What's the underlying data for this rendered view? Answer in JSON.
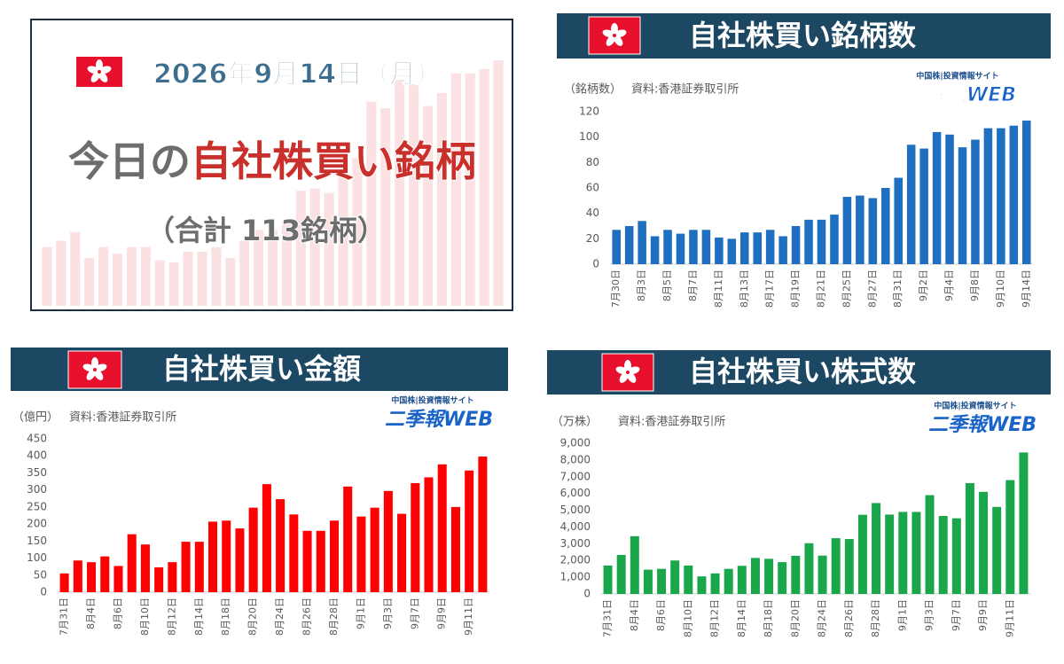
{
  "title_card": {
    "date": "2026年9月14日（月）",
    "headline_lead": "今日の",
    "headline_main": "自社株買い銘柄",
    "total": "（合計 113銘柄）"
  },
  "logo": {
    "tagline": "中国株|投資情報サイト",
    "name": "二季報WEB"
  },
  "chart_data": [
    {
      "type": "bar",
      "title": "自社株買い銘柄数",
      "y_label": "（銘柄数）",
      "source": "資料:香港証券取引所",
      "color": "#1f6fc0",
      "grid": false,
      "categories": [
        "7月30日",
        null,
        "8月3日",
        null,
        "8月5日",
        null,
        "8月7日",
        null,
        "8月11日",
        null,
        "8月13日",
        null,
        "8月17日",
        null,
        "8月19日",
        null,
        "8月21日",
        null,
        "8月25日",
        null,
        "8月27日",
        null,
        "8月31日",
        null,
        "9月2日",
        null,
        "9月4日",
        null,
        "9月8日",
        null,
        "9月10日",
        null,
        "9月14日"
      ],
      "values": [
        27,
        30,
        34,
        22,
        27,
        24,
        27,
        27,
        21,
        20,
        25,
        25,
        27,
        22,
        30,
        35,
        35,
        39,
        53,
        54,
        52,
        60,
        68,
        94,
        91,
        104,
        102,
        92,
        98,
        107,
        107,
        109,
        113
      ],
      "ylim": [
        0,
        120
      ],
      "yticks": [
        0,
        20,
        40,
        60,
        80,
        100,
        120
      ]
    },
    {
      "type": "bar",
      "title": "自社株買い金額",
      "y_label": "（億円）",
      "source": "資料:香港証券取引所",
      "color": "#ff0000",
      "grid": false,
      "categories": [
        "7月31日",
        null,
        "8月4日",
        null,
        "8月6日",
        null,
        "8月10日",
        null,
        "8月12日",
        null,
        "8月14日",
        null,
        "8月18日",
        null,
        "8月20日",
        null,
        "8月24日",
        null,
        "8月26日",
        null,
        "8月28日",
        null,
        "9月1日",
        null,
        "9月3日",
        null,
        "9月7日",
        null,
        "9月9日",
        null,
        "9月11日",
        null
      ],
      "values": [
        55,
        93,
        88,
        105,
        77,
        170,
        140,
        73,
        88,
        148,
        148,
        207,
        210,
        187,
        248,
        317,
        273,
        228,
        180,
        180,
        210,
        310,
        222,
        248,
        297,
        230,
        320,
        337,
        375,
        250,
        357,
        398
      ],
      "ylim": [
        0,
        450
      ],
      "yticks": [
        0,
        50,
        100,
        150,
        200,
        250,
        300,
        350,
        400,
        450
      ]
    },
    {
      "type": "bar",
      "title": "自社株買い株式数",
      "y_label": "（万株）",
      "source": "資料:香港証券取引所",
      "color": "#1aa64a",
      "grid": false,
      "categories": [
        "7月31日",
        null,
        "8月4日",
        null,
        "8月6日",
        null,
        "8月10日",
        null,
        "8月12日",
        null,
        "8月14日",
        null,
        "8月18日",
        null,
        "8月20日",
        null,
        "8月24日",
        null,
        "8月26日",
        null,
        "8月28日",
        null,
        "9月1日",
        null,
        "9月3日",
        null,
        "9月7日",
        null,
        "9月9日",
        null,
        "9月11日",
        null
      ],
      "values": [
        1700,
        2330,
        3450,
        1450,
        1500,
        2000,
        1700,
        1050,
        1230,
        1500,
        1680,
        2150,
        2100,
        1900,
        2280,
        3030,
        2290,
        3330,
        3280,
        4730,
        5430,
        4740,
        4900,
        4900,
        5900,
        4660,
        4520,
        6620,
        6100,
        5200,
        6800,
        8450
      ],
      "ylim": [
        0,
        9000
      ],
      "yticks": [
        0,
        {
          "value": 1000,
          "label": "1,000"
        },
        {
          "value": 2000,
          "label": "2,000"
        },
        {
          "value": 3000,
          "label": "3,000"
        },
        {
          "value": 4000,
          "label": "4,000"
        },
        {
          "value": 5000,
          "label": "5,000"
        },
        {
          "value": 6000,
          "label": "6,000"
        },
        {
          "value": 7000,
          "label": "7,000"
        },
        {
          "value": 8000,
          "label": "8,000"
        },
        {
          "value": 9000,
          "label": "9,000"
        }
      ]
    }
  ]
}
